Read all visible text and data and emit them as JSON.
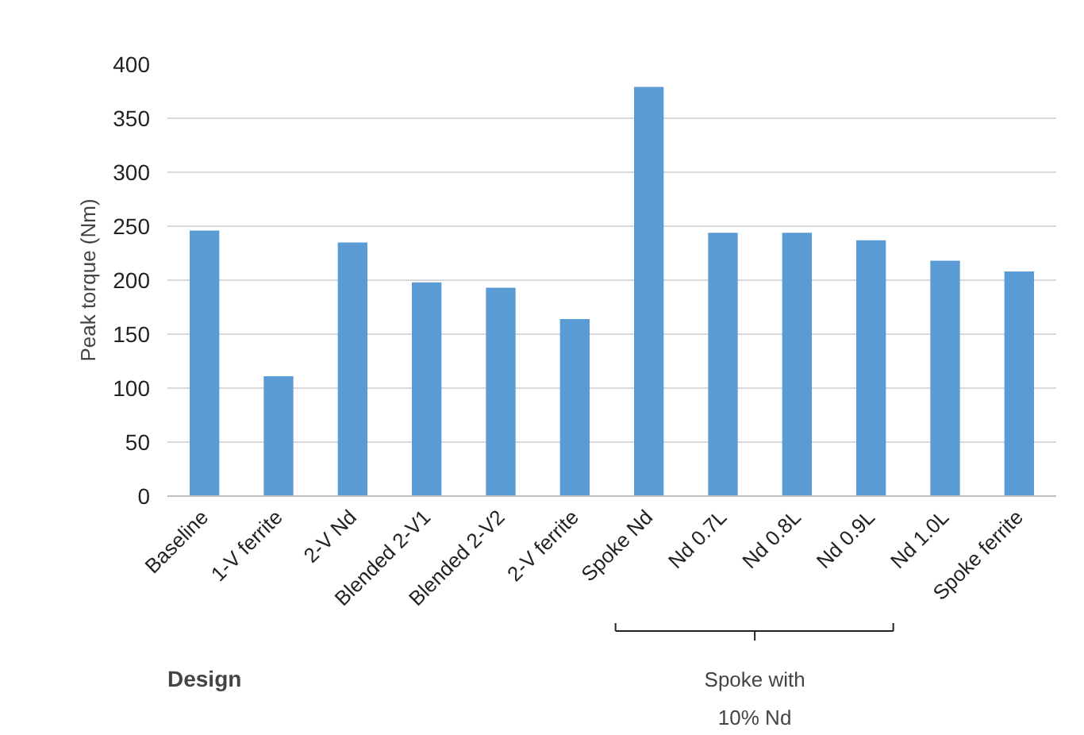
{
  "chart_data": {
    "type": "bar",
    "xlabel": "Design",
    "ylabel": "Peak torque (Nm)",
    "categories": [
      "Baseline",
      "1-V ferrite",
      "2-V Nd",
      "Blended 2-V1",
      "Blended 2-V2",
      "2-V ferrite",
      "Spoke Nd",
      "Nd 0.7L",
      "Nd 0.8L",
      "Nd 0.9L",
      "Nd 1.0L",
      "Spoke ferrite"
    ],
    "values": [
      246,
      111,
      235,
      198,
      193,
      164,
      379,
      244,
      244,
      237,
      218,
      208
    ],
    "color": "#5b9bd5",
    "ylim": [
      0,
      400
    ],
    "yticks": [
      0,
      50,
      100,
      150,
      200,
      250,
      300,
      350,
      400
    ],
    "grid": "y",
    "annotations": [
      "Spoke with\n10% Nd"
    ]
  }
}
